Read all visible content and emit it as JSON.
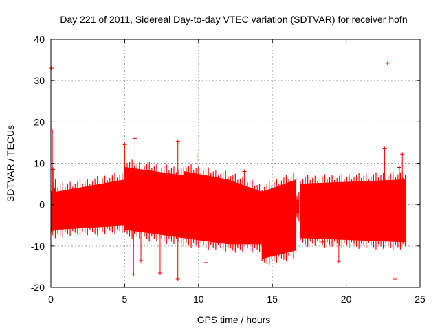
{
  "chart_data": {
    "type": "scatter",
    "title": "Day 221 of 2011, Sidereal Day-to-day VTEC variation (SDTVAR) for receiver hofn",
    "xlabel": "GPS time / hours",
    "ylabel": "SDTVAR / TECUs",
    "xlim": [
      0,
      25
    ],
    "ylim": [
      -20,
      40
    ],
    "x_ticks": [
      "0",
      "5",
      "10",
      "15",
      "20",
      "25"
    ],
    "y_ticks": [
      "-20",
      "-10",
      "0",
      "10",
      "20",
      "30",
      "40"
    ],
    "grid": true,
    "marker": "+",
    "series_color": "#ff0000",
    "band_segments": [
      {
        "x": [
          0.0,
          0.3
        ],
        "low": [
          -6.5,
          -6.0
        ],
        "high": [
          3.0,
          4.0
        ]
      },
      {
        "x": [
          0.3,
          5.0
        ],
        "low": [
          -6.0,
          -5.0
        ],
        "high": [
          3.0,
          6.0
        ]
      },
      {
        "x": [
          5.0,
          9.0
        ],
        "low": [
          -6.0,
          -8.0
        ],
        "high": [
          9.0,
          7.0
        ]
      },
      {
        "x": [
          9.0,
          12.0
        ],
        "low": [
          -8.0,
          -9.5
        ],
        "high": [
          8.0,
          6.0
        ]
      },
      {
        "x": [
          12.0,
          14.3
        ],
        "low": [
          -9.5,
          -9.5
        ],
        "high": [
          6.0,
          3.0
        ]
      },
      {
        "x": [
          14.3,
          16.6
        ],
        "low": [
          -13.0,
          -11.0
        ],
        "high": [
          3.0,
          6.0
        ]
      },
      {
        "x": [
          16.6,
          16.8
        ],
        "low": [
          -2.0,
          -2.0
        ],
        "high": [
          1.0,
          1.0
        ]
      },
      {
        "x": [
          16.9,
          24.0
        ],
        "low": [
          -8.0,
          -9.0
        ],
        "high": [
          5.0,
          6.0
        ]
      }
    ],
    "outliers": [
      {
        "x": 0.05,
        "y": 33.0
      },
      {
        "x": 0.1,
        "y": 17.8
      },
      {
        "x": 0.15,
        "y": 8.5
      },
      {
        "x": 5.0,
        "y": 14.5
      },
      {
        "x": 5.7,
        "y": 16.0
      },
      {
        "x": 5.6,
        "y": -16.8
      },
      {
        "x": 6.1,
        "y": -13.5
      },
      {
        "x": 7.4,
        "y": -16.5
      },
      {
        "x": 8.6,
        "y": 15.3
      },
      {
        "x": 8.6,
        "y": -18.0
      },
      {
        "x": 9.9,
        "y": 12.0
      },
      {
        "x": 10.5,
        "y": -14.0
      },
      {
        "x": 13.1,
        "y": 8.0
      },
      {
        "x": 18.4,
        "y": -9.0
      },
      {
        "x": 19.5,
        "y": -13.7
      },
      {
        "x": 22.6,
        "y": 13.5
      },
      {
        "x": 22.8,
        "y": 34.2
      },
      {
        "x": 23.3,
        "y": -18.0
      },
      {
        "x": 23.8,
        "y": 12.2
      },
      {
        "x": 23.6,
        "y": 9.0
      }
    ]
  }
}
